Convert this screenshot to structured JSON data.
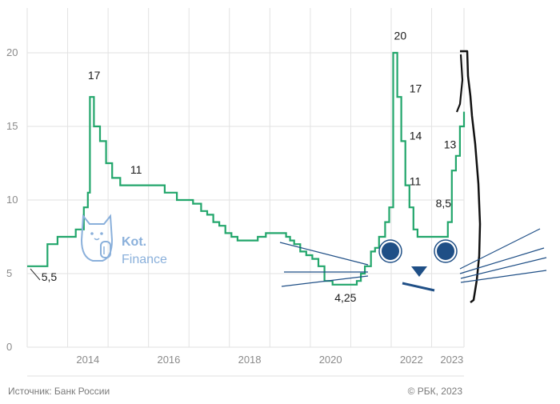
{
  "chart_data": {
    "type": "line",
    "title": "",
    "xlabel": "",
    "ylabel": "",
    "ylim": [
      0,
      20
    ],
    "xlim": [
      2013.0,
      2023.8
    ],
    "grid": true,
    "y_ticks": [
      0,
      5,
      10,
      15,
      20
    ],
    "y_tick_labels": [
      "0",
      "5",
      "10",
      "15",
      "20"
    ],
    "x_ticks": [
      2014,
      2016,
      2018,
      2020,
      2022,
      2023
    ],
    "x_tick_labels": [
      "2014",
      "2016",
      "2018",
      "2020",
      "2022",
      "2023"
    ],
    "series": [
      {
        "color": "#22a66b",
        "step": true,
        "points": [
          [
            2013.0,
            5.5
          ],
          [
            2013.15,
            5.5
          ],
          [
            2013.4,
            5.5
          ],
          [
            2013.5,
            7.0
          ],
          [
            2013.75,
            7.5
          ],
          [
            2014.2,
            8.0
          ],
          [
            2014.4,
            9.5
          ],
          [
            2014.5,
            10.5
          ],
          [
            2014.55,
            17.0
          ],
          [
            2014.65,
            15.0
          ],
          [
            2014.8,
            14.0
          ],
          [
            2014.95,
            12.5
          ],
          [
            2015.1,
            11.5
          ],
          [
            2015.3,
            11.0
          ],
          [
            2016.4,
            10.5
          ],
          [
            2016.7,
            10.0
          ],
          [
            2017.1,
            9.75
          ],
          [
            2017.3,
            9.25
          ],
          [
            2017.45,
            9.0
          ],
          [
            2017.6,
            8.5
          ],
          [
            2017.75,
            8.25
          ],
          [
            2017.9,
            7.75
          ],
          [
            2018.05,
            7.5
          ],
          [
            2018.2,
            7.25
          ],
          [
            2018.7,
            7.5
          ],
          [
            2018.9,
            7.75
          ],
          [
            2019.4,
            7.5
          ],
          [
            2019.5,
            7.25
          ],
          [
            2019.6,
            7.0
          ],
          [
            2019.75,
            6.5
          ],
          [
            2019.9,
            6.25
          ],
          [
            2020.05,
            6.0
          ],
          [
            2020.2,
            5.5
          ],
          [
            2020.35,
            4.5
          ],
          [
            2020.55,
            4.25
          ],
          [
            2021.15,
            4.5
          ],
          [
            2021.25,
            5.0
          ],
          [
            2021.35,
            5.5
          ],
          [
            2021.5,
            6.5
          ],
          [
            2021.6,
            6.75
          ],
          [
            2021.7,
            7.5
          ],
          [
            2021.85,
            8.5
          ],
          [
            2021.95,
            9.5
          ],
          [
            2022.05,
            20.0
          ],
          [
            2022.15,
            17.0
          ],
          [
            2022.25,
            14.0
          ],
          [
            2022.35,
            11.0
          ],
          [
            2022.45,
            9.5
          ],
          [
            2022.55,
            8.0
          ],
          [
            2022.65,
            7.5
          ],
          [
            2023.4,
            8.5
          ],
          [
            2023.5,
            12.0
          ],
          [
            2023.6,
            13.0
          ],
          [
            2023.7,
            15.0
          ],
          [
            2023.8,
            16.0
          ]
        ]
      }
    ],
    "data_labels": [
      {
        "text": "5,5",
        "x": 2013.35,
        "y": 4.5
      },
      {
        "text": "17",
        "x": 2014.5,
        "y": 18.2
      },
      {
        "text": "11",
        "x": 2015.55,
        "y": 11.8
      },
      {
        "text": "4,25",
        "x": 2020.6,
        "y": 3.1
      },
      {
        "text": "20",
        "x": 2022.07,
        "y": 20.9
      },
      {
        "text": "17",
        "x": 2022.45,
        "y": 17.3
      },
      {
        "text": "14",
        "x": 2022.45,
        "y": 14.1
      },
      {
        "text": "11",
        "x": 2022.45,
        "y": 11.0
      },
      {
        "text": "8,5",
        "x": 2023.1,
        "y": 9.5
      },
      {
        "text": "13",
        "x": 2023.3,
        "y": 13.5
      }
    ],
    "legend": "none"
  },
  "logo": {
    "brand": "Kot.",
    "sub": "Finance"
  },
  "footer": {
    "source": "Источник: Банк России",
    "copyright": "© РБК, 2023"
  },
  "colors": {
    "series": "#22a66b",
    "grid": "#e2e2e2",
    "cat": "#1f4f86",
    "logo": "#8ab0db",
    "outline": "#111111"
  },
  "icons": [
    "cat-logo-icon",
    "cat-face-doodle"
  ]
}
